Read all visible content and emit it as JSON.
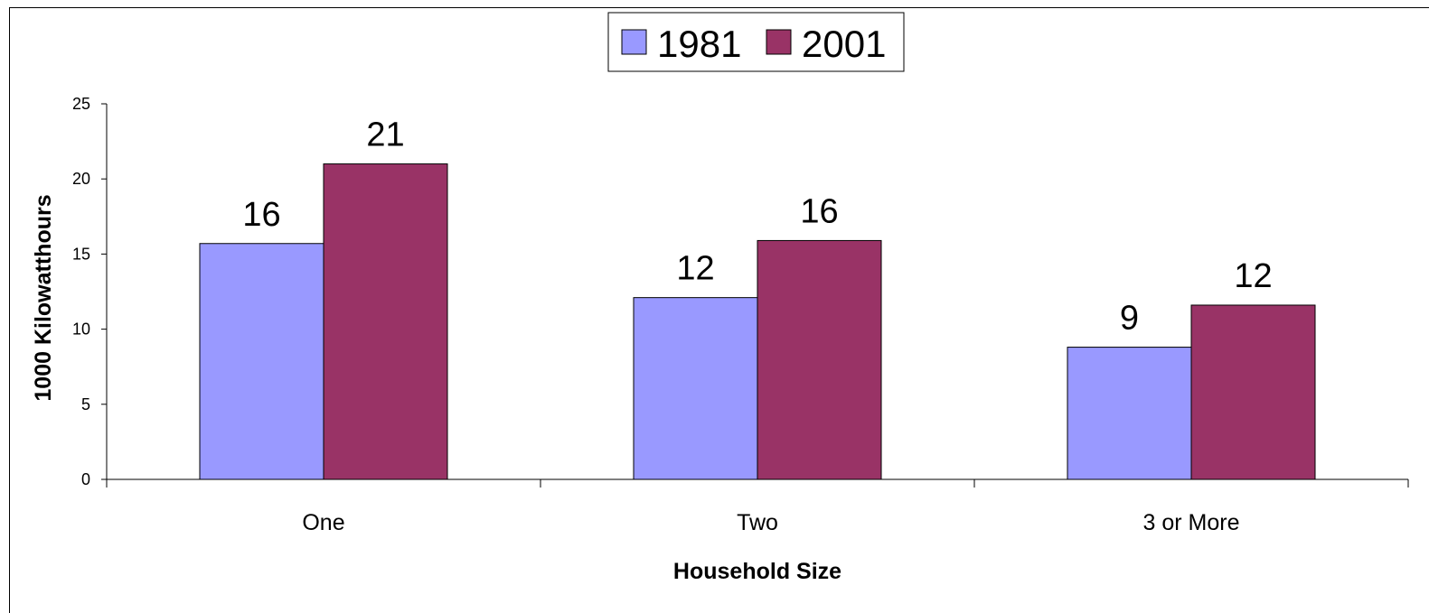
{
  "chart_data": {
    "type": "bar",
    "categories": [
      "One",
      "Two",
      "3 or More"
    ],
    "series": [
      {
        "name": "1981",
        "color": "#9999ff",
        "values": [
          15.7,
          12.1,
          8.8
        ],
        "labels": [
          "16",
          "12",
          "9"
        ]
      },
      {
        "name": "2001",
        "color": "#993366",
        "values": [
          21.0,
          15.9,
          11.6
        ],
        "labels": [
          "21",
          "16",
          "12"
        ]
      }
    ],
    "xlabel": "Household Size",
    "ylabel": "1000 Kilowatthours",
    "ylim": [
      0,
      25
    ],
    "yticks": [
      0,
      5,
      10,
      15,
      20,
      25
    ],
    "ytick_labels": [
      "0",
      "5",
      "10",
      "15",
      "20",
      "25"
    ],
    "grid": false,
    "legend_position": "top-center"
  }
}
